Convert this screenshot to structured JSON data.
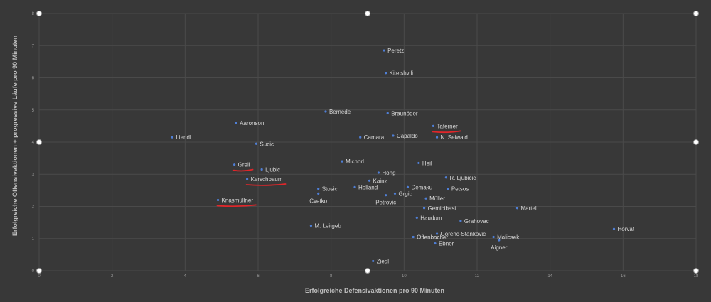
{
  "chart_data": {
    "type": "scatter",
    "xlabel": "Erfolgreiche Defensivaktionen pro 90 Minuten",
    "ylabel": "Erfolgreiche Offensivaktionen + progressive Läufe pro 90 Minuten",
    "xlim": [
      0,
      18
    ],
    "ylim": [
      0,
      8
    ],
    "x_ticks": [
      0,
      2,
      4,
      6,
      8,
      10,
      12,
      14,
      16,
      18
    ],
    "y_ticks": [
      0,
      1,
      2,
      3,
      4,
      5,
      6,
      7,
      8
    ],
    "grid": true,
    "point_color": "#4f7fd6",
    "highlight_color": "#e0262a",
    "points": [
      {
        "label": "Peretz",
        "x": 9.45,
        "y": 6.85
      },
      {
        "label": "Kiteishvili",
        "x": 9.5,
        "y": 6.15
      },
      {
        "label": "Bernede",
        "x": 7.85,
        "y": 4.95
      },
      {
        "label": "Braunöder",
        "x": 9.55,
        "y": 4.9
      },
      {
        "label": "Aaronson",
        "x": 5.4,
        "y": 4.6
      },
      {
        "label": "Taferner",
        "x": 10.8,
        "y": 4.5
      },
      {
        "label": "Liendl",
        "x": 3.65,
        "y": 4.15
      },
      {
        "label": "Camara",
        "x": 8.8,
        "y": 4.15
      },
      {
        "label": "Capaldo",
        "x": 9.7,
        "y": 4.2
      },
      {
        "label": "N. Seiwald",
        "x": 10.9,
        "y": 4.15
      },
      {
        "label": "Sucic",
        "x": 5.95,
        "y": 3.95
      },
      {
        "label": "Michorl",
        "x": 8.3,
        "y": 3.4
      },
      {
        "label": "Heil",
        "x": 10.4,
        "y": 3.35
      },
      {
        "label": "Greil",
        "x": 5.35,
        "y": 3.3
      },
      {
        "label": "Ljubic",
        "x": 6.1,
        "y": 3.15
      },
      {
        "label": "Hong",
        "x": 9.3,
        "y": 3.05
      },
      {
        "label": "R. Ljubicic",
        "x": 11.15,
        "y": 2.9
      },
      {
        "label": "Kerschbaum",
        "x": 5.7,
        "y": 2.85
      },
      {
        "label": "Kainz",
        "x": 9.05,
        "y": 2.8
      },
      {
        "label": "Stosic",
        "x": 7.65,
        "y": 2.55
      },
      {
        "label": "Holland",
        "x": 8.65,
        "y": 2.6
      },
      {
        "label": "Demaku",
        "x": 10.1,
        "y": 2.6
      },
      {
        "label": "Petsos",
        "x": 11.2,
        "y": 2.55
      },
      {
        "label": "Cvetko",
        "x": 7.65,
        "y": 2.4
      },
      {
        "label": "Grgic",
        "x": 9.75,
        "y": 2.4
      },
      {
        "label": "Petrovic",
        "x": 9.5,
        "y": 2.35
      },
      {
        "label": "Müller",
        "x": 10.6,
        "y": 2.25
      },
      {
        "label": "Knasmüllner",
        "x": 4.9,
        "y": 2.2
      },
      {
        "label": "Gemicibasi",
        "x": 10.55,
        "y": 1.95
      },
      {
        "label": "Martel",
        "x": 13.1,
        "y": 1.95
      },
      {
        "label": "Haudum",
        "x": 10.35,
        "y": 1.65
      },
      {
        "label": "Grahovac",
        "x": 11.55,
        "y": 1.55
      },
      {
        "label": "M. Leitgeb",
        "x": 7.45,
        "y": 1.4
      },
      {
        "label": "Horvat",
        "x": 15.75,
        "y": 1.3
      },
      {
        "label": "Gorenc-Stankovic",
        "x": 10.9,
        "y": 1.15
      },
      {
        "label": "Offenbacher",
        "x": 10.25,
        "y": 1.05
      },
      {
        "label": "Malicsek",
        "x": 12.45,
        "y": 1.05
      },
      {
        "label": "Ebner",
        "x": 10.85,
        "y": 0.85
      },
      {
        "label": "Aigner",
        "x": 12.6,
        "y": 0.95
      },
      {
        "label": "Ziegl",
        "x": 9.15,
        "y": 0.3
      }
    ],
    "highlighted": [
      "Taferner",
      "Greil",
      "Kerschbaum",
      "Knasmüllner"
    ]
  }
}
